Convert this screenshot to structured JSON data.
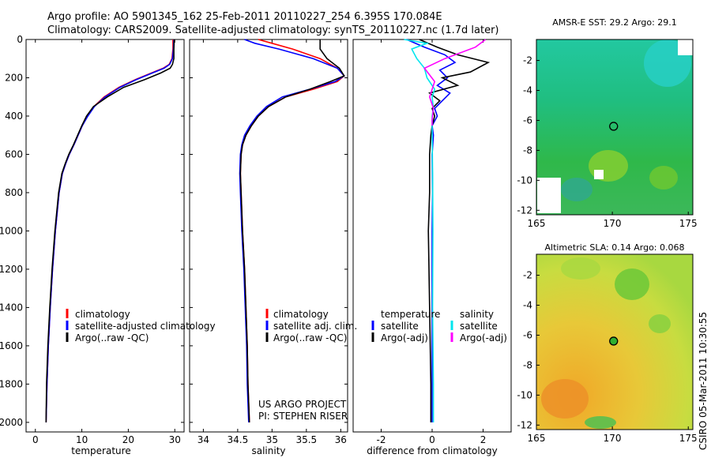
{
  "header": {
    "line1": "Argo profile: AO 5901345_162 25-Feb-2011 20110227_254 6.395S 170.084E",
    "line2": "Climatology: CARS2009. Satellite-adjusted climatology: synTS_20110227.nc (1.7d later)"
  },
  "footer": {
    "project": "US ARGO PROJECT",
    "pi": "PI: STEPHEN RISER",
    "stamp": "CSIRO 05-Mar-2011 10:30:55"
  },
  "colors": {
    "climatology": "#ff0000",
    "satellite": "#0000ff",
    "argo": "#000000",
    "satellite_salinity": "#00e5ee",
    "argo_adj_salinity": "#ff00ff"
  },
  "chart_data": [
    {
      "type": "line",
      "id": "temperature",
      "xlabel": "temperature",
      "xlim": [
        -2,
        32
      ],
      "ylim": [
        0,
        2050
      ],
      "xticks": [
        0,
        10,
        20,
        30
      ],
      "yticks": [
        0,
        200,
        400,
        600,
        800,
        1000,
        1200,
        1400,
        1600,
        1800,
        2000
      ],
      "legend": [
        "climatology",
        "satellite-adjusted climatology",
        "Argo(..raw -QC)"
      ],
      "series": [
        {
          "name": "climatology",
          "color": "#ff0000",
          "x": [
            29.6,
            29.6,
            29.4,
            28.8,
            27.5,
            25,
            21.5,
            18,
            14.8,
            12.6,
            11.2,
            10.1,
            9.2,
            8.3,
            7.3,
            6.5,
            5.8,
            5.1,
            4.3,
            3.7,
            3.2,
            2.8,
            2.5,
            2.3
          ],
          "y": [
            0,
            50,
            100,
            130,
            150,
            175,
            210,
            250,
            300,
            350,
            400,
            450,
            500,
            550,
            600,
            650,
            700,
            800,
            1000,
            1200,
            1400,
            1600,
            1800,
            2000
          ]
        },
        {
          "name": "satellite-adjusted climatology",
          "color": "#0000ff",
          "x": [
            29.8,
            29.7,
            29.5,
            28.9,
            27.7,
            25.2,
            21.7,
            18.2,
            15,
            12.7,
            11.3,
            10.1,
            9.2,
            8.3,
            7.3,
            6.5,
            5.8,
            5.1,
            4.3,
            3.7,
            3.2,
            2.8,
            2.5,
            2.3
          ],
          "y": [
            0,
            50,
            100,
            130,
            150,
            175,
            210,
            250,
            300,
            350,
            400,
            450,
            500,
            550,
            600,
            650,
            700,
            800,
            1000,
            1200,
            1400,
            1600,
            1800,
            2000
          ]
        },
        {
          "name": "Argo(..raw -QC)",
          "color": "#000000",
          "x": [
            29.9,
            29.8,
            29.8,
            29.5,
            29,
            27,
            23.5,
            19,
            15.5,
            12.5,
            11,
            10,
            9.1,
            8.2,
            7.2,
            6.4,
            5.7,
            5,
            4.2,
            3.6,
            3.1,
            2.7,
            2.4,
            2.3
          ],
          "y": [
            0,
            50,
            100,
            130,
            150,
            175,
            210,
            250,
            300,
            350,
            400,
            450,
            500,
            550,
            600,
            650,
            700,
            800,
            1000,
            1200,
            1400,
            1600,
            1800,
            2000
          ]
        }
      ]
    },
    {
      "type": "line",
      "id": "salinity",
      "xlabel": "salinity",
      "xlim": [
        33.8,
        36.1
      ],
      "ylim": [
        0,
        2050
      ],
      "xticks": [
        34,
        34.5,
        35,
        35.5,
        36
      ],
      "yticks": [
        0,
        200,
        400,
        600,
        800,
        1000,
        1200,
        1400,
        1600,
        1800,
        2000
      ],
      "legend": [
        "climatology",
        "satellite adj. clim.",
        "Argo(..raw -QC)"
      ],
      "series": [
        {
          "name": "climatology",
          "color": "#ff0000",
          "x": [
            34.8,
            35,
            35.3,
            35.7,
            35.95,
            36.05,
            35.95,
            35.6,
            35.2,
            34.95,
            34.8,
            34.7,
            34.62,
            34.57,
            34.55,
            34.54,
            34.55,
            34.57,
            34.6,
            34.62,
            34.64,
            34.65,
            34.66,
            34.67
          ],
          "y": [
            0,
            20,
            50,
            100,
            150,
            190,
            220,
            260,
            300,
            350,
            400,
            450,
            500,
            550,
            600,
            700,
            800,
            1000,
            1200,
            1400,
            1600,
            1800,
            1900,
            2000
          ]
        },
        {
          "name": "satellite adj. clim.",
          "color": "#0000ff",
          "x": [
            34.6,
            34.75,
            35.1,
            35.6,
            35.95,
            36.05,
            35.92,
            35.55,
            35.15,
            34.92,
            34.78,
            34.68,
            34.6,
            34.56,
            34.54,
            34.53,
            34.54,
            34.56,
            34.59,
            34.61,
            34.63,
            34.64,
            34.65,
            34.66
          ],
          "y": [
            0,
            20,
            50,
            100,
            150,
            190,
            220,
            260,
            300,
            350,
            400,
            450,
            500,
            550,
            600,
            700,
            800,
            1000,
            1200,
            1400,
            1600,
            1800,
            1900,
            2000
          ]
        },
        {
          "name": "Argo(..raw -QC)",
          "color": "#000000",
          "x": [
            35.7,
            35.7,
            35.7,
            35.8,
            35.98,
            36.05,
            35.85,
            35.55,
            35.2,
            34.95,
            34.8,
            34.7,
            34.62,
            34.57,
            34.55,
            34.54,
            34.55,
            34.57,
            34.6,
            34.62,
            34.64,
            34.65,
            34.66,
            34.67
          ],
          "y": [
            0,
            20,
            50,
            100,
            150,
            190,
            220,
            260,
            300,
            350,
            400,
            450,
            500,
            550,
            600,
            700,
            800,
            1000,
            1200,
            1400,
            1600,
            1800,
            1900,
            2000
          ]
        }
      ]
    },
    {
      "type": "line",
      "id": "difference",
      "xlabel": "difference from climatology",
      "xlim": [
        -3.1,
        3.1
      ],
      "ylim": [
        0,
        2050
      ],
      "xticks": [
        -2,
        0,
        2
      ],
      "legend": [
        "temperature",
        "satellite",
        "Argo(-adj)",
        "salinity",
        "satellite",
        "Argo(-adj)"
      ],
      "series": [
        {
          "name": "temperature satellite",
          "color": "#0000ff",
          "x": [
            -1,
            -0.3,
            0.5,
            0.9,
            0.3,
            0.6,
            0.2,
            0.7,
            0.4,
            0.1,
            0.2,
            0,
            0.05,
            0,
            0.02,
            0,
            0,
            0,
            0
          ],
          "y": [
            0,
            40,
            80,
            120,
            160,
            200,
            240,
            280,
            320,
            360,
            400,
            450,
            500,
            600,
            800,
            1000,
            1400,
            1800,
            2000
          ]
        },
        {
          "name": "temperature Argo(-adj)",
          "color": "#000000",
          "x": [
            -0.5,
            0.2,
            1,
            2.2,
            1.5,
            0.4,
            1,
            -0.1,
            0.3,
            0,
            0.1,
            0,
            -0.05,
            -0.1,
            -0.1,
            -0.15,
            -0.1,
            -0.05,
            -0.05
          ],
          "y": [
            0,
            40,
            80,
            120,
            170,
            200,
            240,
            280,
            320,
            360,
            400,
            450,
            500,
            600,
            800,
            1000,
            1400,
            1800,
            2000
          ]
        },
        {
          "name": "salinity satellite",
          "color": "#00e5ee",
          "x": [
            -1.1,
            -0.2,
            -0.8,
            -0.6,
            -0.3,
            -0.2,
            0.1,
            0,
            0.05,
            0,
            0,
            0.02,
            0.03,
            0.02,
            0.05,
            0.05
          ],
          "y": [
            0,
            20,
            50,
            100,
            150,
            200,
            260,
            300,
            360,
            400,
            500,
            700,
            1000,
            1400,
            1800,
            2000
          ]
        },
        {
          "name": "salinity Argo(-adj)",
          "color": "#ff00ff",
          "x": [
            2.1,
            1.7,
            0.5,
            -0.3,
            0.1,
            -0.1,
            0.05,
            0,
            0
          ],
          "y": [
            0,
            40,
            100,
            150,
            220,
            300,
            360,
            420,
            450
          ]
        }
      ]
    },
    {
      "type": "heatmap",
      "id": "sst-map",
      "title": "AMSR-E SST: 29.2 Argo: 29.1",
      "xlim": [
        165,
        175.3
      ],
      "ylim": [
        -12.3,
        -0.6
      ],
      "xticks": [
        165,
        170,
        175
      ],
      "yticks": [
        -2,
        -4,
        -6,
        -8,
        -10,
        -12
      ],
      "marker": {
        "lon": 170.084,
        "lat": -6.395
      }
    },
    {
      "type": "heatmap",
      "id": "sla-map",
      "title": "Altimetric SLA: 0.14 Argo: 0.068",
      "xlim": [
        165,
        175.3
      ],
      "ylim": [
        -12.3,
        -0.6
      ],
      "xticks": [
        165,
        170,
        175
      ],
      "yticks": [
        -2,
        -4,
        -6,
        -8,
        -10,
        -12
      ],
      "marker": {
        "lon": 170.084,
        "lat": -6.395
      }
    }
  ]
}
